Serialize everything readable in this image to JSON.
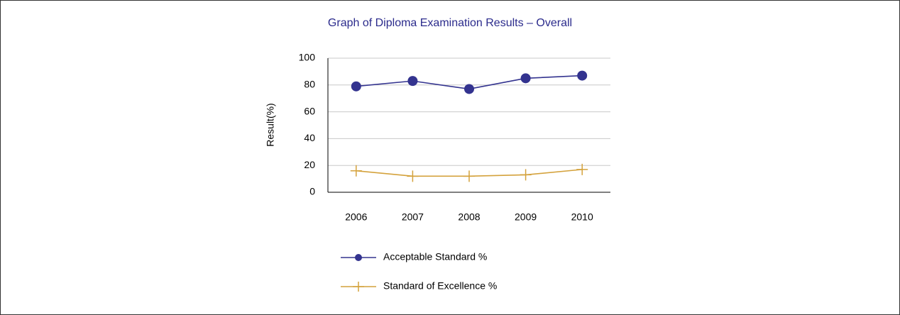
{
  "chart_data": {
    "type": "line",
    "title": "Graph of Diploma Examination Results – Overall",
    "y_label": "Result(%)",
    "categories": [
      "2006",
      "2007",
      "2008",
      "2009",
      "2010"
    ],
    "series": [
      {
        "name": "Acceptable Standard %",
        "color": "#33338f",
        "marker": "circle",
        "values": [
          79,
          83,
          77,
          85,
          87
        ]
      },
      {
        "name": "Standard of Excellence %",
        "color": "#d4a23c",
        "marker": "plus",
        "values": [
          16,
          12,
          12,
          13,
          17
        ]
      }
    ],
    "ylim": [
      0,
      100
    ],
    "yticks": [
      0,
      20,
      40,
      60,
      80,
      100
    ],
    "grid": true,
    "legend": "bottom"
  }
}
